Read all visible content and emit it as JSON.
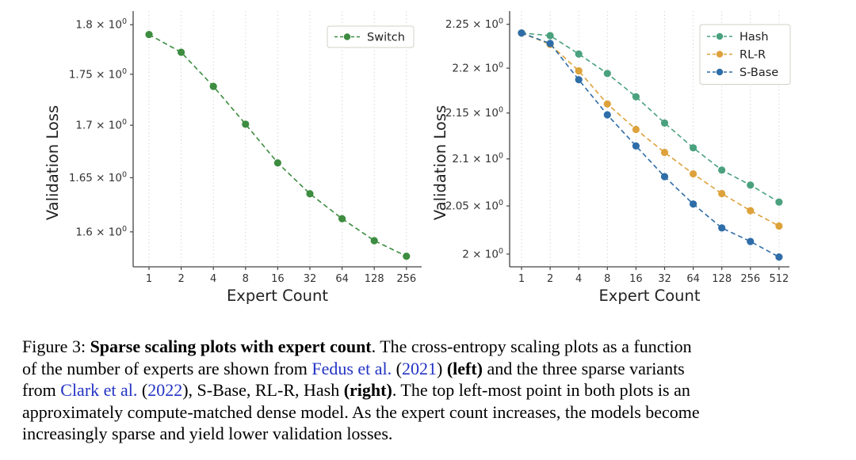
{
  "figure_caption": {
    "lines": [
      [
        {
          "t": "Figure 3: ",
          "s": "n"
        },
        {
          "t": "Sparse scaling plots with expert count",
          "s": "b"
        },
        {
          "t": ".  The cross-entropy scaling plots as a function",
          "s": "n"
        }
      ],
      [
        {
          "t": "of the number of experts are shown from ",
          "s": "n"
        },
        {
          "t": "Fedus et al.",
          "s": "l"
        },
        {
          "t": " (",
          "s": "n"
        },
        {
          "t": "2021",
          "s": "l"
        },
        {
          "t": ") ",
          "s": "n"
        },
        {
          "t": "(left)",
          "s": "b"
        },
        {
          "t": " and the three sparse variants",
          "s": "n"
        }
      ],
      [
        {
          "t": "from ",
          "s": "n"
        },
        {
          "t": "Clark et al.",
          "s": "l"
        },
        {
          "t": " (",
          "s": "n"
        },
        {
          "t": "2022",
          "s": "l"
        },
        {
          "t": "), S-Base, RL-R, Hash ",
          "s": "n"
        },
        {
          "t": "(right)",
          "s": "b"
        },
        {
          "t": ".  The top left-most point in both plots is an",
          "s": "n"
        }
      ],
      [
        {
          "t": "approximately compute-matched dense model.  As the expert count increases, the models become",
          "s": "n"
        }
      ],
      [
        {
          "t": "increasingly sparse and yield lower validation losses.",
          "s": "n"
        }
      ]
    ]
  },
  "chart_data": [
    {
      "type": "line",
      "title": "",
      "xlabel": "Expert Count",
      "ylabel": "Validation Loss",
      "x_scale": "log2",
      "y_scale": "log",
      "grid": "vertical-dotted",
      "legend_position": "upper-right-inside",
      "categories": [
        "1",
        "2",
        "4",
        "8",
        "16",
        "32",
        "64",
        "128",
        "256"
      ],
      "ylim": [
        1.5685,
        1.814
      ],
      "y_ticks": [
        {
          "v": 1.8,
          "label": "1.8 × 10^0"
        },
        {
          "v": 1.75,
          "label": "1.75 × 10^0"
        },
        {
          "v": 1.7,
          "label": "1.7 × 10^0"
        },
        {
          "v": 1.65,
          "label": "1.65 × 10^0"
        },
        {
          "v": 1.6,
          "label": "1.6 × 10^0"
        }
      ],
      "series": [
        {
          "name": "Switch",
          "color": "#3d8c40",
          "values": [
            1.79,
            1.772,
            1.738,
            1.701,
            1.664,
            1.635,
            1.612,
            1.592,
            1.578
          ]
        }
      ]
    },
    {
      "type": "line",
      "title": "",
      "xlabel": "Expert Count",
      "ylabel": "Validation Loss",
      "x_scale": "log2",
      "y_scale": "log",
      "grid": "vertical-dotted",
      "legend_position": "upper-right-inside",
      "categories": [
        "1",
        "2",
        "4",
        "8",
        "16",
        "32",
        "64",
        "128",
        "256",
        "512"
      ],
      "ylim": [
        1.987,
        2.2653
      ],
      "y_ticks": [
        {
          "v": 2.25,
          "label": "2.25 × 10^0"
        },
        {
          "v": 2.2,
          "label": "2.2 × 10^0"
        },
        {
          "v": 2.15,
          "label": "2.15 × 10^0"
        },
        {
          "v": 2.1,
          "label": "2.1 × 10^0"
        },
        {
          "v": 2.05,
          "label": "2.05 × 10^0"
        },
        {
          "v": 2.0,
          "label": "2 × 10^0"
        }
      ],
      "series": [
        {
          "name": "Hash",
          "color": "#4aa17e",
          "values": [
            2.24,
            2.237,
            2.216,
            2.194,
            2.168,
            2.139,
            2.112,
            2.088,
            2.072,
            2.054
          ]
        },
        {
          "name": "RL-R",
          "color": "#dda23b",
          "values": [
            2.24,
            2.227,
            2.197,
            2.16,
            2.132,
            2.107,
            2.084,
            2.063,
            2.045,
            2.029
          ]
        },
        {
          "name": "S-Base",
          "color": "#2e6da8",
          "values": [
            2.24,
            2.228,
            2.187,
            2.148,
            2.114,
            2.081,
            2.052,
            2.027,
            2.013,
            1.997
          ]
        }
      ]
    }
  ]
}
